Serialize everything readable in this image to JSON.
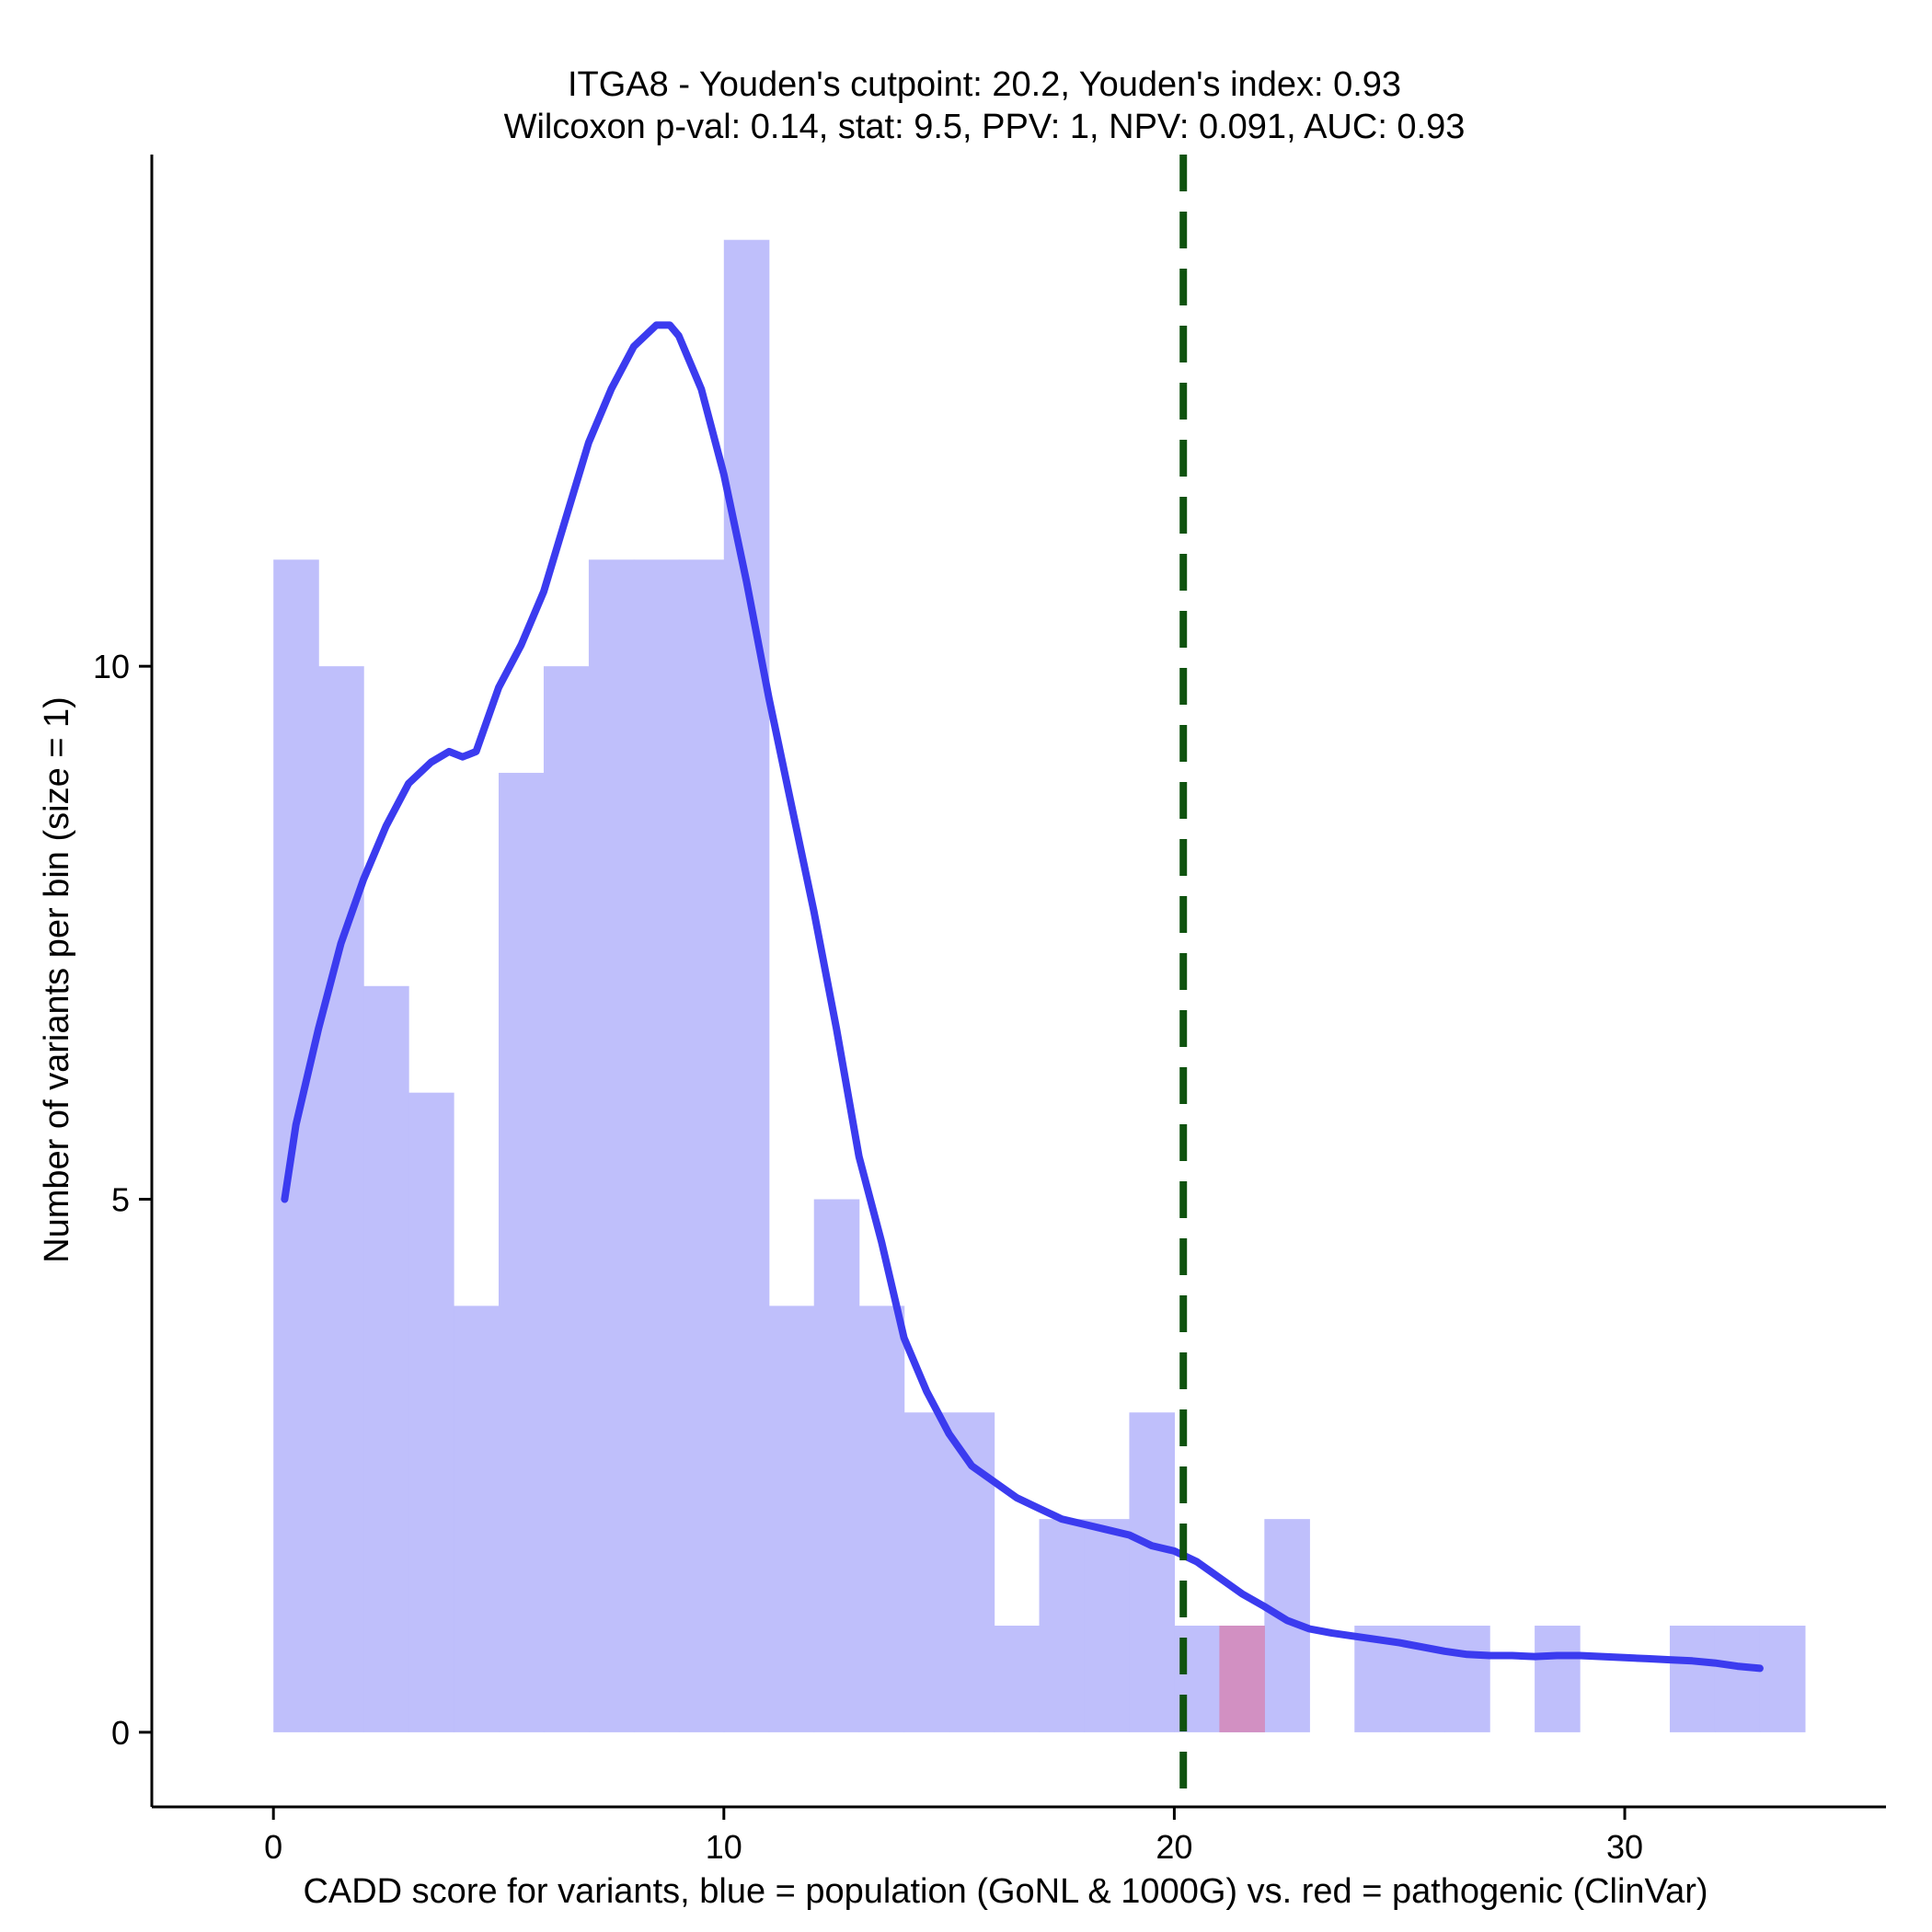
{
  "chart_data": {
    "type": "histogram",
    "title": "ITGA8 - Youden's cutpoint: 20.2, Youden's index: 0.93",
    "subtitle": "Wilcoxon p-val: 0.14, stat: 9.5, PPV: 1, NPV: 0.091, AUC: 0.93",
    "xlabel": "CADD score for variants, blue = population (GoNL & 1000G) vs. red = pathogenic (ClinVar)",
    "ylabel": "Number of variants per bin (size = 1)",
    "xlim": [
      -2.7,
      35.8
    ],
    "ylim": [
      -0.7,
      14.8
    ],
    "x_ticks": [
      0,
      10,
      20,
      30
    ],
    "y_ticks": [
      0,
      5,
      10
    ],
    "bin_width": 1,
    "series": [
      {
        "name": "population",
        "color": "#bfbffb",
        "bin_starts": [
          0,
          1,
          2,
          3,
          4,
          5,
          6,
          7,
          8,
          9,
          10,
          11,
          12,
          13,
          14,
          15,
          16,
          17,
          18,
          19,
          20,
          21,
          22,
          23,
          24,
          25,
          26,
          27,
          28,
          29,
          30,
          31,
          32,
          33
        ],
        "counts": [
          11,
          10,
          7,
          6,
          4,
          9,
          10,
          11,
          11,
          11,
          14,
          4,
          5,
          4,
          3,
          3,
          1,
          2,
          2,
          3,
          1,
          1,
          2,
          0,
          1,
          1,
          1,
          0,
          1,
          0,
          0,
          1,
          1,
          1
        ]
      },
      {
        "name": "pathogenic",
        "color": "#d290c2",
        "bin_starts": [
          21
        ],
        "counts": [
          1
        ]
      }
    ],
    "density_curve": {
      "name": "population density",
      "color": "#3b3bef",
      "x": [
        0.25,
        0.5,
        1.0,
        1.5,
        2.0,
        2.5,
        3.0,
        3.5,
        3.9,
        4.2,
        4.5,
        5.0,
        5.5,
        6.0,
        6.5,
        7.0,
        7.5,
        8.0,
        8.5,
        8.8,
        9.0,
        9.5,
        10.0,
        10.5,
        11.0,
        11.5,
        12.0,
        12.5,
        13.0,
        13.5,
        14.0,
        14.5,
        15.0,
        15.5,
        16.0,
        16.5,
        17.0,
        17.5,
        18.0,
        18.5,
        19.0,
        19.5,
        20.0,
        20.5,
        21.0,
        21.5,
        22.0,
        22.5,
        23.0,
        23.5,
        24.0,
        24.5,
        25.0,
        25.5,
        26.0,
        26.5,
        27.0,
        27.5,
        28.0,
        28.5,
        29.0,
        29.5,
        30.0,
        30.5,
        31.0,
        31.5,
        32.0,
        32.5,
        33.0
      ],
      "y": [
        5.0,
        5.7,
        6.6,
        7.4,
        8.0,
        8.5,
        8.9,
        9.1,
        9.2,
        9.15,
        9.2,
        9.8,
        10.2,
        10.7,
        11.4,
        12.1,
        12.6,
        13.0,
        13.2,
        13.2,
        13.1,
        12.6,
        11.8,
        10.8,
        9.7,
        8.7,
        7.7,
        6.6,
        5.4,
        4.6,
        3.7,
        3.2,
        2.8,
        2.5,
        2.35,
        2.2,
        2.1,
        2.0,
        1.95,
        1.9,
        1.85,
        1.75,
        1.7,
        1.6,
        1.45,
        1.3,
        1.18,
        1.05,
        0.97,
        0.93,
        0.9,
        0.87,
        0.84,
        0.8,
        0.76,
        0.73,
        0.72,
        0.72,
        0.71,
        0.72,
        0.72,
        0.71,
        0.7,
        0.69,
        0.68,
        0.67,
        0.65,
        0.62,
        0.6
      ]
    },
    "cutpoint": {
      "x": 20.2,
      "color": "#0f520f",
      "style": "dashed"
    },
    "grid": false,
    "legend": "none"
  }
}
